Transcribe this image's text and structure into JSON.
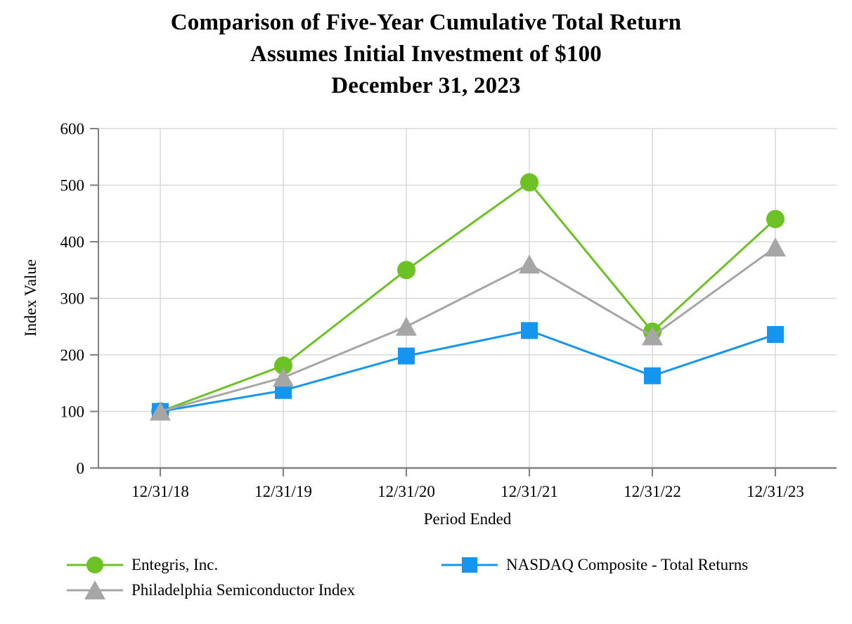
{
  "header": {
    "title_lines": [
      "Comparison of Five-Year Cumulative Total Return",
      "Assumes Initial Investment of $100",
      "December 31, 2023"
    ]
  },
  "chart_data": {
    "type": "line",
    "title": "Comparison of Five-Year Cumulative Total Return - Assumes Initial Investment of $100 - December 31, 2023",
    "xlabel": "Period Ended",
    "ylabel": "Index Value",
    "x_categories": [
      "12/31/18",
      "12/31/19",
      "12/31/20",
      "12/31/21",
      "12/31/22",
      "12/31/23"
    ],
    "ylim": [
      0,
      600
    ],
    "y_ticks": [
      0,
      100,
      200,
      300,
      400,
      500,
      600
    ],
    "grid": true,
    "legend_position": "bottom",
    "series": [
      {
        "name": "Entegris, Inc.",
        "marker": "circle",
        "color": "#6cc125",
        "values": [
          100,
          181,
          350,
          505,
          241,
          440
        ]
      },
      {
        "name": "NASDAQ Composite - Total Returns",
        "marker": "square",
        "color": "#1496f0",
        "values": [
          100,
          137,
          198,
          243,
          163,
          236
        ]
      },
      {
        "name": "Philadelphia Semiconductor Index",
        "marker": "triangle",
        "color": "#a6a6a6",
        "values": [
          100,
          160,
          250,
          360,
          233,
          390
        ]
      }
    ],
    "colors": {
      "gridline": "#d9d9d9",
      "axis": "#808080",
      "text": "#000000"
    }
  }
}
